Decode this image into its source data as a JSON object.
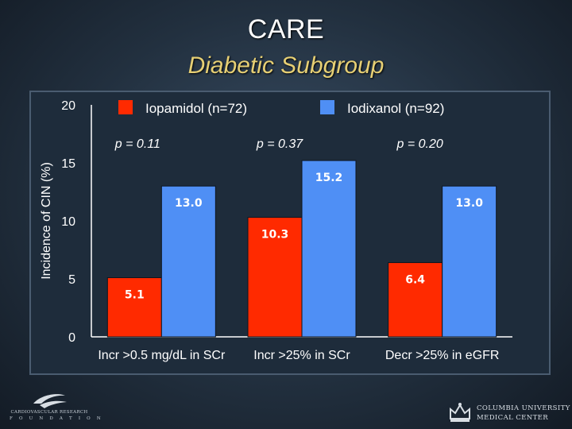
{
  "slide": {
    "title": "CARE",
    "subtitle": "Diabetic Subgroup"
  },
  "chart_data": {
    "type": "bar",
    "title": "",
    "ylabel": "Incidence of CIN (%)",
    "xlabel": "",
    "ylim": [
      0,
      20
    ],
    "yticks": [
      0,
      5,
      10,
      15,
      20
    ],
    "categories": [
      "Incr >0.5 mg/dL in SCr",
      "Incr >25% in SCr",
      "Decr >25% in eGFR"
    ],
    "series": [
      {
        "name": "Iopamidol (n=72)",
        "color": "#ff2a00",
        "values": [
          5.1,
          10.3,
          6.4
        ],
        "labels": [
          "5.1",
          "10.3",
          "6.4"
        ]
      },
      {
        "name": "Iodixanol (n=92)",
        "color": "#4f8ff5",
        "values": [
          13.0,
          15.2,
          13.0
        ],
        "labels": [
          "13.0",
          "15.2",
          "13.0"
        ]
      }
    ],
    "p_values": [
      "p = 0.11",
      "p = 0.37",
      "p = 0.20"
    ],
    "legend_position": "top"
  },
  "footer": {
    "left_org": "CARDIOVASCULAR RESEARCH",
    "left_org2": "F O U N D A T I O N",
    "right_line1": "COLUMBIA UNIVERSITY",
    "right_line2": "MEDICAL CENTER"
  },
  "colors": {
    "subtitle": "#e6cf74",
    "panel_bg": "#1e2c3b",
    "axis": "#ffffff"
  }
}
